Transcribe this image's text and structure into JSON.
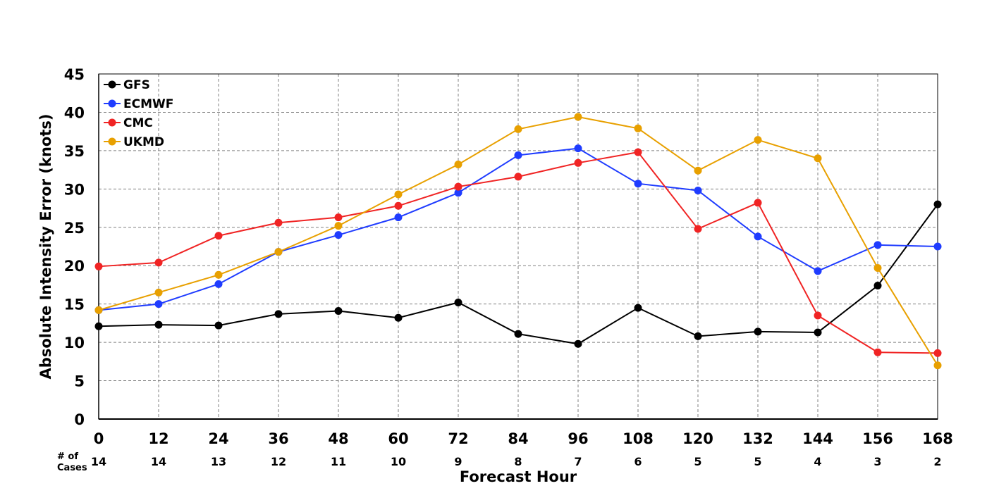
{
  "chart_data": {
    "type": "line",
    "title": "",
    "xlabel": "Forecast Hour",
    "ylabel": "Absolute Intensity Error (knots)",
    "x": [
      0,
      12,
      24,
      36,
      48,
      60,
      72,
      84,
      96,
      108,
      120,
      132,
      144,
      156,
      168
    ],
    "xlim": [
      0,
      168
    ],
    "ylim": [
      0,
      45
    ],
    "y_ticks": [
      0,
      5,
      10,
      15,
      20,
      25,
      30,
      35,
      40,
      45
    ],
    "grid": true,
    "legend_position": "top-left",
    "cases_header_line1": "# of",
    "cases_header_line2": "Cases",
    "cases": [
      14,
      14,
      13,
      12,
      11,
      10,
      9,
      8,
      7,
      6,
      5,
      5,
      4,
      3,
      2
    ],
    "series": [
      {
        "name": "GFS",
        "color": "#000000",
        "values": [
          12.1,
          12.3,
          12.2,
          13.7,
          14.1,
          13.2,
          15.2,
          11.1,
          9.8,
          14.5,
          10.8,
          11.4,
          11.3,
          17.4,
          28.0
        ]
      },
      {
        "name": "ECMWF",
        "color": "#1f3cff",
        "values": [
          14.2,
          15.0,
          17.6,
          21.8,
          24.0,
          26.3,
          29.5,
          34.4,
          35.3,
          30.7,
          29.8,
          23.8,
          19.3,
          22.7,
          22.5
        ]
      },
      {
        "name": "CMC",
        "color": "#f02424",
        "values": [
          19.9,
          20.4,
          23.9,
          25.6,
          26.3,
          27.8,
          30.3,
          31.6,
          33.4,
          34.8,
          24.8,
          28.2,
          13.5,
          8.7,
          8.6
        ]
      },
      {
        "name": "UKMD",
        "color": "#e8a000",
        "values": [
          14.2,
          16.5,
          18.8,
          21.8,
          25.2,
          29.3,
          33.2,
          37.8,
          39.4,
          37.9,
          32.4,
          36.4,
          34.0,
          19.7,
          7.0
        ]
      }
    ]
  }
}
